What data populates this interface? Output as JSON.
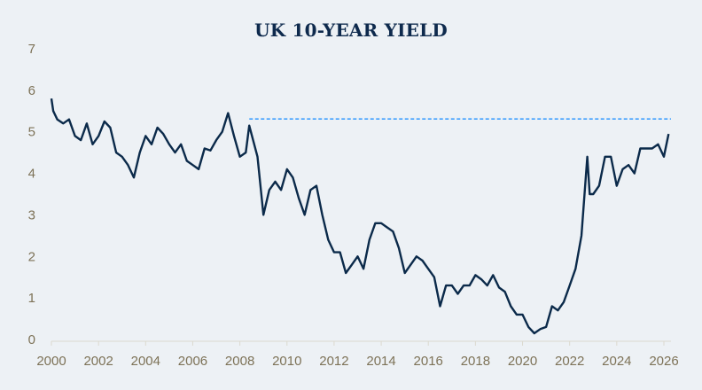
{
  "chart_data": {
    "type": "line",
    "title": "UK 10-YEAR YIELD",
    "xlabel": "",
    "ylabel": "",
    "xlim": [
      2000,
      2026.3
    ],
    "ylim": [
      0,
      7
    ],
    "x_ticks": [
      "2000",
      "2002",
      "2004",
      "2006",
      "2008",
      "2010",
      "2012",
      "2014",
      "2016",
      "2018",
      "2020",
      "2022",
      "2024",
      "2026"
    ],
    "y_ticks": [
      "0",
      "1",
      "2",
      "3",
      "4",
      "5",
      "6",
      "7"
    ],
    "grid": false,
    "colors": {
      "series": "#0b2a4a",
      "reference": "#1e90ff",
      "axis_text": "#7d7257"
    },
    "reference_line": {
      "y": 5.31,
      "x_start": 2008.4,
      "x_end": 2026.3,
      "style": "dashed"
    },
    "series": [
      {
        "x": [
          2000.0,
          2000.08,
          2000.25,
          2000.5,
          2000.75,
          2001.0,
          2001.25,
          2001.5,
          2001.75,
          2002.0,
          2002.25,
          2002.5,
          2002.75,
          2003.0,
          2003.25,
          2003.5,
          2003.75,
          2004.0,
          2004.25,
          2004.5,
          2004.75,
          2005.0,
          2005.25,
          2005.5,
          2005.75,
          2006.0,
          2006.25,
          2006.5,
          2006.75,
          2007.0,
          2007.25,
          2007.5,
          2007.75,
          2008.0,
          2008.25,
          2008.4,
          2008.75,
          2009.0,
          2009.25,
          2009.5,
          2009.75,
          2010.0,
          2010.25,
          2010.5,
          2010.75,
          2011.0,
          2011.25,
          2011.5,
          2011.75,
          2012.0,
          2012.25,
          2012.5,
          2012.75,
          2013.0,
          2013.25,
          2013.5,
          2013.75,
          2014.0,
          2014.25,
          2014.5,
          2014.75,
          2015.0,
          2015.25,
          2015.5,
          2015.75,
          2016.0,
          2016.25,
          2016.5,
          2016.75,
          2017.0,
          2017.25,
          2017.5,
          2017.75,
          2018.0,
          2018.25,
          2018.5,
          2018.75,
          2019.0,
          2019.25,
          2019.5,
          2019.75,
          2020.0,
          2020.25,
          2020.5,
          2020.75,
          2021.0,
          2021.25,
          2021.5,
          2021.75,
          2022.0,
          2022.25,
          2022.5,
          2022.75,
          2022.85,
          2023.0,
          2023.25,
          2023.5,
          2023.75,
          2024.0,
          2024.25,
          2024.5,
          2024.75,
          2025.0,
          2025.25,
          2025.5,
          2025.75,
          2026.0,
          2026.2
        ],
        "y": [
          5.8,
          5.5,
          5.3,
          5.2,
          5.3,
          4.9,
          4.8,
          5.2,
          4.7,
          4.9,
          5.25,
          5.1,
          4.5,
          4.4,
          4.2,
          3.9,
          4.5,
          4.9,
          4.7,
          5.1,
          4.95,
          4.7,
          4.5,
          4.7,
          4.3,
          4.2,
          4.1,
          4.6,
          4.55,
          4.8,
          5.0,
          5.45,
          4.9,
          4.4,
          4.5,
          5.15,
          4.4,
          3.0,
          3.6,
          3.8,
          3.6,
          4.1,
          3.9,
          3.4,
          3.0,
          3.6,
          3.7,
          3.0,
          2.4,
          2.1,
          2.1,
          1.6,
          1.8,
          2.0,
          1.7,
          2.4,
          2.8,
          2.8,
          2.7,
          2.6,
          2.2,
          1.6,
          1.8,
          2.0,
          1.9,
          1.7,
          1.5,
          0.8,
          1.3,
          1.3,
          1.1,
          1.3,
          1.3,
          1.55,
          1.45,
          1.3,
          1.55,
          1.25,
          1.15,
          0.8,
          0.6,
          0.6,
          0.3,
          0.15,
          0.25,
          0.3,
          0.8,
          0.7,
          0.9,
          1.3,
          1.7,
          2.5,
          4.4,
          3.5,
          3.5,
          3.7,
          4.4,
          4.4,
          3.7,
          4.1,
          4.2,
          4.0,
          4.6,
          4.6,
          4.6,
          4.7,
          4.4,
          4.95
        ]
      }
    ]
  }
}
